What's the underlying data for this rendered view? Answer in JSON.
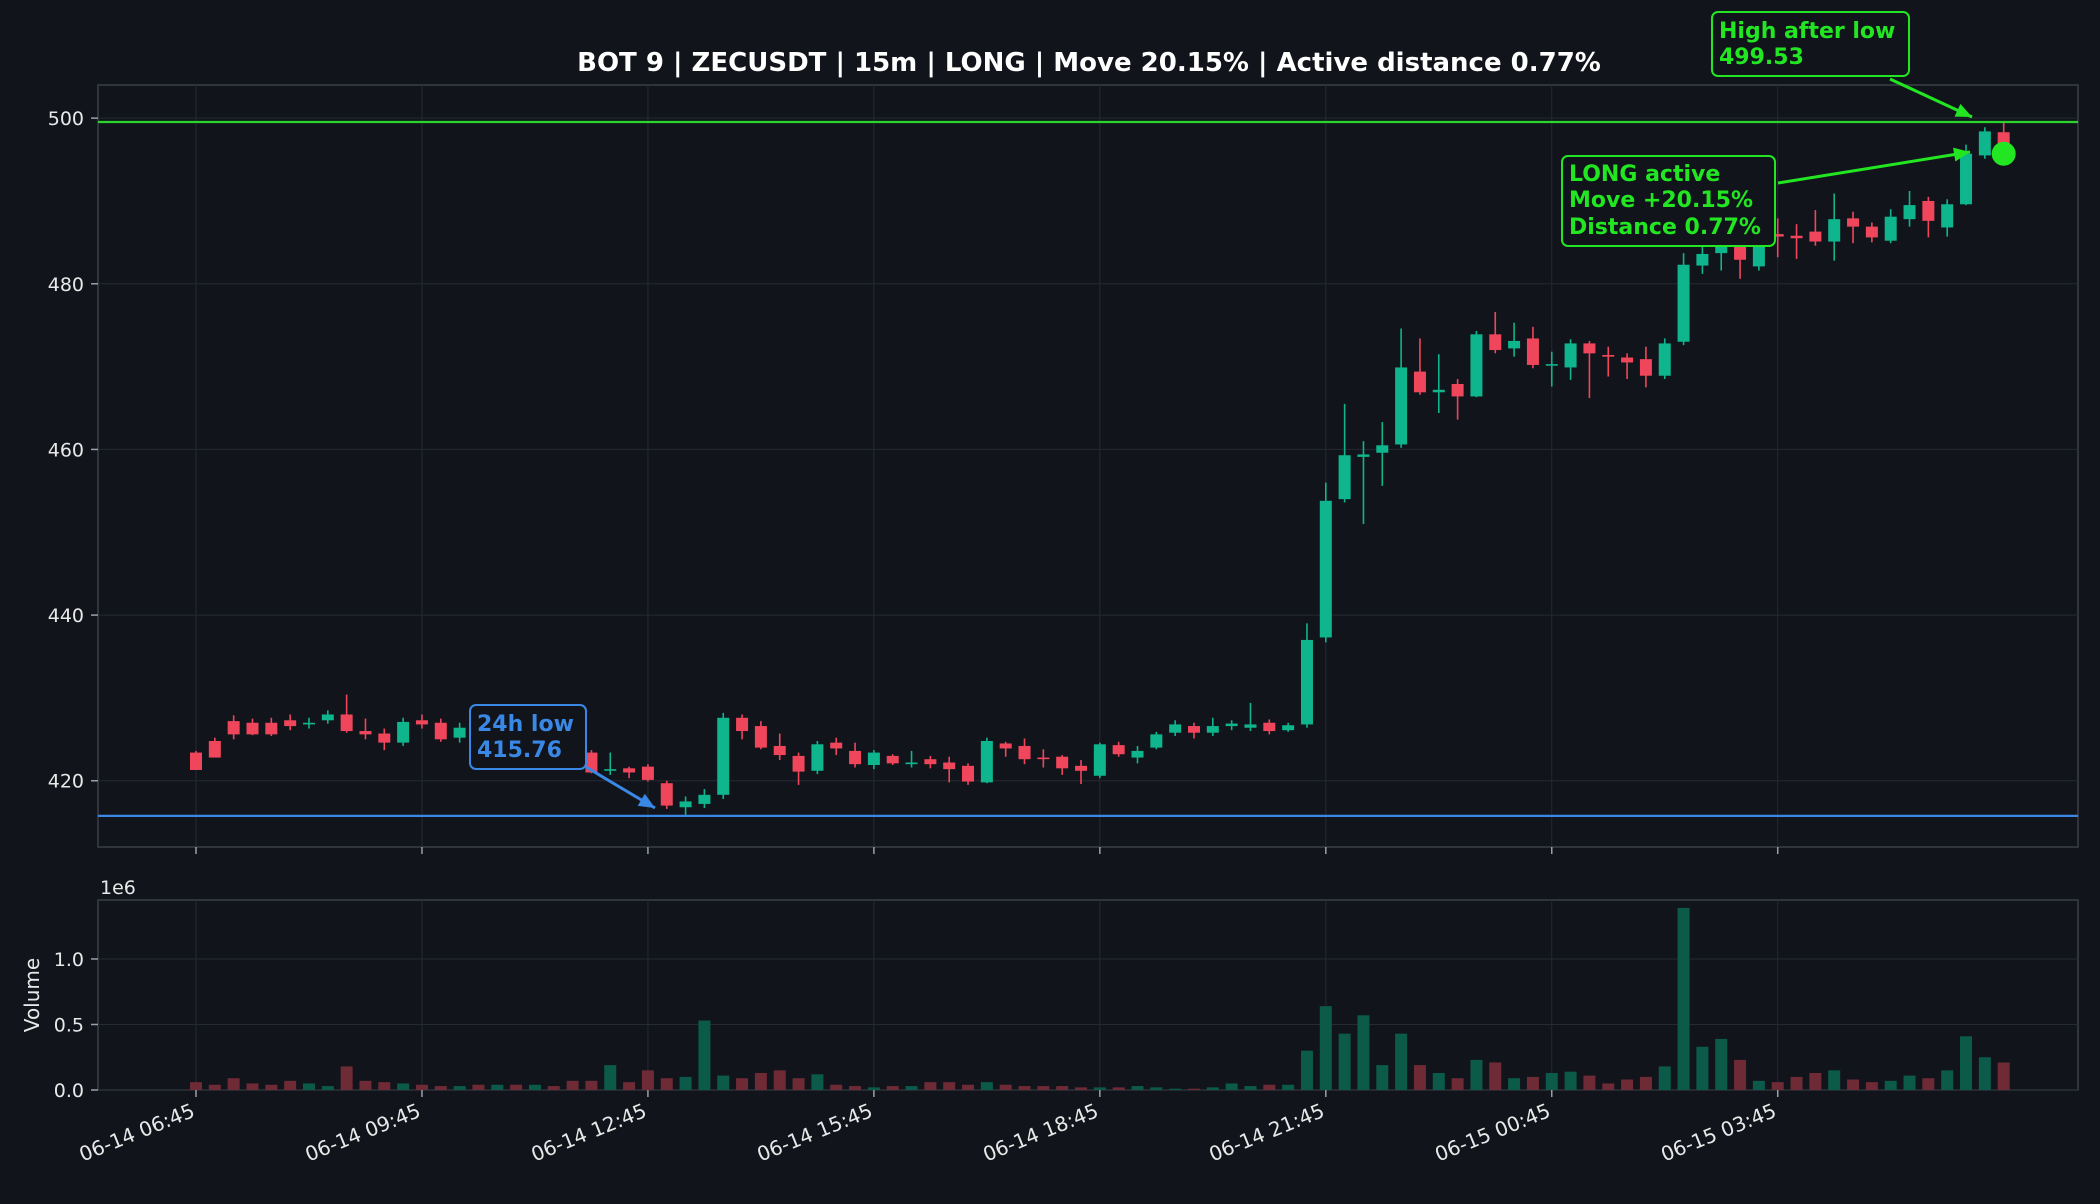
{
  "chart_data": {
    "type": "candlestick",
    "title": "BOT 9 | ZECUSDT | 15m | LONG | Move 20.15% | Active distance 0.77%",
    "interval_minutes": 15,
    "x_start": "06-14 06:45",
    "x_tick_labels": [
      "06-14 06:45",
      "06-14 09:45",
      "06-14 12:45",
      "06-14 15:45",
      "06-14 18:45",
      "06-14 21:45",
      "06-15 00:45",
      "06-15 03:45"
    ],
    "price_axis": {
      "ylim": [
        412,
        504
      ],
      "ticks": [
        420,
        440,
        460,
        480,
        500
      ]
    },
    "volume_axis": {
      "ylabel": "Volume",
      "multiplier_label": "1e6",
      "ylim": [
        0,
        1.45
      ],
      "ticks": [
        0.0,
        0.5,
        1.0
      ],
      "tick_labels": [
        "0.0",
        "0.5",
        "1.0"
      ]
    },
    "grid": true,
    "colors": {
      "background": "#11141b",
      "up": "#0fb58d",
      "down": "#f0465b",
      "up_volume": "#0c5a4a",
      "down_volume": "#6e2a35",
      "high_line": "#2bd52b",
      "low_line": "#3a88e6",
      "annotation_green": "#22e622",
      "annotation_blue": "#3a88e6"
    },
    "candles": [
      [
        423.4,
        421.3,
        423.6,
        422.0
      ],
      [
        424.8,
        422.8,
        425.2,
        423.6
      ],
      [
        427.2,
        425.6,
        427.9,
        425.0
      ],
      [
        427.0,
        425.6,
        427.5,
        425.5
      ],
      [
        427.0,
        425.6,
        427.6,
        425.4
      ],
      [
        427.3,
        426.6,
        428.0,
        426.1
      ],
      [
        426.8,
        427.0,
        427.6,
        426.3
      ],
      [
        427.3,
        428.0,
        428.5,
        426.9
      ],
      [
        428.0,
        426.0,
        430.4,
        425.8
      ],
      [
        426.0,
        425.6,
        427.5,
        425.0
      ],
      [
        425.7,
        424.6,
        426.3,
        423.7
      ],
      [
        424.6,
        427.1,
        427.6,
        424.2
      ],
      [
        427.3,
        426.8,
        428.0,
        426.3
      ],
      [
        427.0,
        425.0,
        427.5,
        424.7
      ],
      [
        425.2,
        426.4,
        427.0,
        424.6
      ],
      [
        426.5,
        426.3,
        427.0,
        425.7
      ],
      [
        426.0,
        426.7,
        427.2,
        425.5
      ],
      [
        426.5,
        426.3,
        427.3,
        425.8
      ],
      [
        426.2,
        426.4,
        427.0,
        425.7
      ],
      [
        426.4,
        426.0,
        426.8,
        425.4
      ],
      [
        425.8,
        423.5,
        426.3,
        422.8
      ],
      [
        423.4,
        421.0,
        423.7,
        420.9
      ],
      [
        421.2,
        421.4,
        423.4,
        420.7
      ],
      [
        421.5,
        421.0,
        421.7,
        420.3
      ],
      [
        421.7,
        420.1,
        422.0,
        419.9
      ],
      [
        419.7,
        417.0,
        420.0,
        416.6
      ],
      [
        416.8,
        417.5,
        418.1,
        415.76
      ],
      [
        417.2,
        418.3,
        419.0,
        416.7
      ],
      [
        418.3,
        427.6,
        428.2,
        417.8
      ],
      [
        427.6,
        426.0,
        428.0,
        425.0
      ],
      [
        426.6,
        424.0,
        427.2,
        423.8
      ],
      [
        424.2,
        423.1,
        425.7,
        422.5
      ],
      [
        423.0,
        421.1,
        423.4,
        419.5
      ],
      [
        421.2,
        424.4,
        424.8,
        420.8
      ],
      [
        424.6,
        423.9,
        425.2,
        423.1
      ],
      [
        423.6,
        422.0,
        424.6,
        421.6
      ],
      [
        421.9,
        423.4,
        423.7,
        421.4
      ],
      [
        423.0,
        422.1,
        423.2,
        421.9
      ],
      [
        422.0,
        422.2,
        423.6,
        421.6
      ],
      [
        422.6,
        422.0,
        423.0,
        421.5
      ],
      [
        422.2,
        421.4,
        422.9,
        419.8
      ],
      [
        421.8,
        419.9,
        422.1,
        419.5
      ],
      [
        419.8,
        424.8,
        425.2,
        419.7
      ],
      [
        424.5,
        423.9,
        424.7,
        422.9
      ],
      [
        424.2,
        422.6,
        425.1,
        422.0
      ],
      [
        422.8,
        422.7,
        423.8,
        421.6
      ],
      [
        422.9,
        421.5,
        423.1,
        420.7
      ],
      [
        421.8,
        421.2,
        422.5,
        419.6
      ],
      [
        420.6,
        424.4,
        424.6,
        420.3
      ],
      [
        424.3,
        423.2,
        424.7,
        422.9
      ],
      [
        422.8,
        423.6,
        424.2,
        422.1
      ],
      [
        424.0,
        425.6,
        425.9,
        423.8
      ],
      [
        425.8,
        426.8,
        427.3,
        425.4
      ],
      [
        426.6,
        425.8,
        427.0,
        425.1
      ],
      [
        425.8,
        426.6,
        427.6,
        425.4
      ],
      [
        426.6,
        426.9,
        427.3,
        426.1
      ],
      [
        426.4,
        426.8,
        429.4,
        426.0
      ],
      [
        427.0,
        426.0,
        427.4,
        425.6
      ],
      [
        426.1,
        426.7,
        427.0,
        425.9
      ],
      [
        426.8,
        437.0,
        439.0,
        426.4
      ],
      [
        437.3,
        453.8,
        456.0,
        436.7
      ],
      [
        454.0,
        459.3,
        465.5,
        453.6
      ],
      [
        459.1,
        459.4,
        461.0,
        451.0
      ],
      [
        459.6,
        460.5,
        463.3,
        455.6
      ],
      [
        460.6,
        469.9,
        474.6,
        460.2
      ],
      [
        469.4,
        466.9,
        473.4,
        466.6
      ],
      [
        466.9,
        467.2,
        471.5,
        464.4
      ],
      [
        467.9,
        466.4,
        468.5,
        463.6
      ],
      [
        466.4,
        473.9,
        474.3,
        466.3
      ],
      [
        473.9,
        472.0,
        476.6,
        471.6
      ],
      [
        472.2,
        473.1,
        475.3,
        471.2
      ],
      [
        473.4,
        470.2,
        474.8,
        469.8
      ],
      [
        470.2,
        470.3,
        471.8,
        467.6
      ],
      [
        469.9,
        472.8,
        473.3,
        468.4
      ],
      [
        472.8,
        471.6,
        473.1,
        466.2
      ],
      [
        471.4,
        471.2,
        472.4,
        468.8
      ],
      [
        471.1,
        470.5,
        471.6,
        468.5
      ],
      [
        470.9,
        468.9,
        472.4,
        467.5
      ],
      [
        468.9,
        472.8,
        473.4,
        468.5
      ],
      [
        473.0,
        482.3,
        483.7,
        472.6
      ],
      [
        482.2,
        483.6,
        486.8,
        481.2
      ],
      [
        483.7,
        485.8,
        486.6,
        481.6
      ],
      [
        485.4,
        482.9,
        486.4,
        480.6
      ],
      [
        482.1,
        485.9,
        487.3,
        481.6
      ],
      [
        486.0,
        485.7,
        487.9,
        483.2
      ],
      [
        485.8,
        485.5,
        487.2,
        483.0
      ],
      [
        486.3,
        485.1,
        488.9,
        484.6
      ],
      [
        485.1,
        487.8,
        490.9,
        482.8
      ],
      [
        487.9,
        486.9,
        488.7,
        484.9
      ],
      [
        486.9,
        485.6,
        487.4,
        485.0
      ],
      [
        485.2,
        488.1,
        489.0,
        484.9
      ],
      [
        487.8,
        489.5,
        491.2,
        486.9
      ],
      [
        490.0,
        487.6,
        490.5,
        485.6
      ],
      [
        486.8,
        489.6,
        490.2,
        485.7
      ],
      [
        489.6,
        495.7,
        496.8,
        489.5
      ],
      [
        495.5,
        498.4,
        498.9,
        495.1
      ],
      [
        498.3,
        496.4,
        499.53,
        495.8
      ]
    ],
    "volume": [
      0.06,
      0.04,
      0.09,
      0.05,
      0.04,
      0.07,
      0.05,
      0.03,
      0.18,
      0.07,
      0.06,
      0.05,
      0.04,
      0.03,
      0.03,
      0.04,
      0.04,
      0.04,
      0.04,
      0.03,
      0.07,
      0.07,
      0.19,
      0.06,
      0.15,
      0.09,
      0.1,
      0.53,
      0.11,
      0.09,
      0.13,
      0.15,
      0.09,
      0.12,
      0.04,
      0.03,
      0.02,
      0.03,
      0.03,
      0.06,
      0.06,
      0.04,
      0.06,
      0.04,
      0.03,
      0.03,
      0.03,
      0.02,
      0.02,
      0.02,
      0.03,
      0.02,
      0.01,
      0.01,
      0.02,
      0.05,
      0.03,
      0.04,
      0.04,
      0.3,
      0.64,
      0.43,
      0.57,
      0.19,
      0.43,
      0.19,
      0.13,
      0.09,
      0.23,
      0.21,
      0.09,
      0.1,
      0.13,
      0.14,
      0.11,
      0.05,
      0.08,
      0.1,
      0.18,
      1.39,
      0.33,
      0.39,
      0.23,
      0.07,
      0.06,
      0.1,
      0.13,
      0.15,
      0.08,
      0.06,
      0.07,
      0.11,
      0.09,
      0.15,
      0.41,
      0.25,
      0.21
    ],
    "annotations": {
      "low": {
        "text1": "24h low",
        "text2": "415.76",
        "value": 415.76
      },
      "high": {
        "text1": "High after low",
        "text2": "499.53",
        "value": 499.53
      },
      "active": {
        "text1": "LONG active",
        "text2": "Move +20.15%",
        "text3": "Distance 0.77%",
        "value": 495.7
      }
    }
  }
}
